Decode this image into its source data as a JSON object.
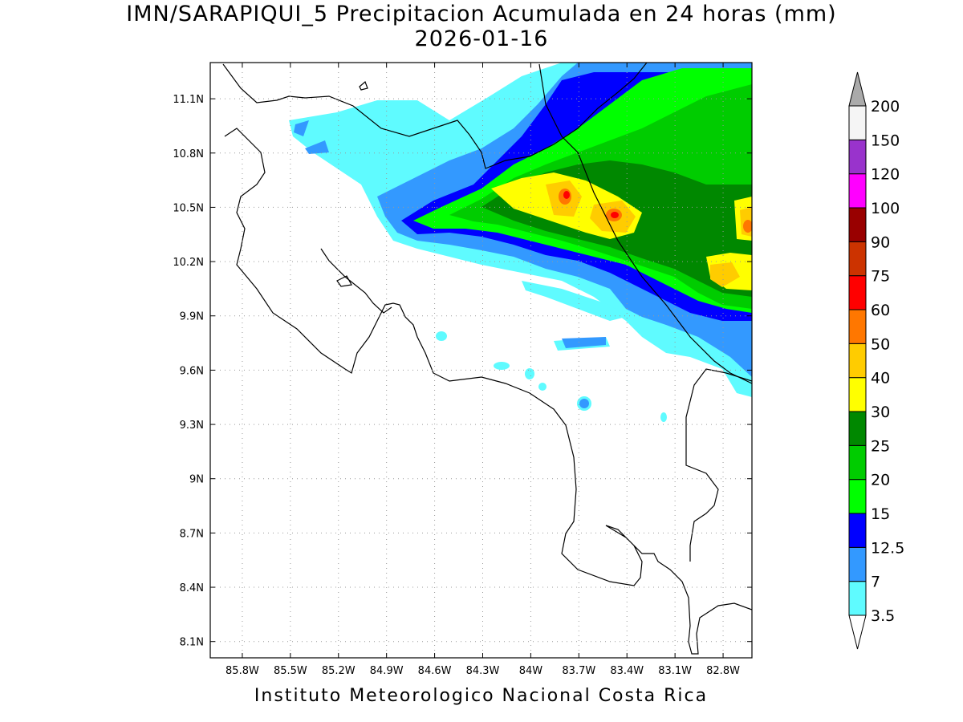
{
  "title_line1": "IMN/SARAPIQUI_5 Precipitacion Acumulada en 24 horas (mm)",
  "title_line2": "2026-01-16",
  "footer": "Instituto Meteorologico Nacional Costa Rica",
  "map": {
    "lon_range": [
      -86.0,
      -82.62
    ],
    "lat_range": [
      8.01,
      11.3
    ],
    "lat_ticks": [
      "11.1N",
      "10.8N",
      "10.5N",
      "10.2N",
      "9.9N",
      "9.6N",
      "9.3N",
      "9N",
      "8.7N",
      "8.4N",
      "8.1N"
    ],
    "lat_values": [
      11.1,
      10.8,
      10.5,
      10.2,
      9.9,
      9.6,
      9.3,
      9.0,
      8.7,
      8.4,
      8.1
    ],
    "lon_ticks": [
      "85.8W",
      "85.5W",
      "85.2W",
      "84.9W",
      "84.6W",
      "84.3W",
      "84W",
      "83.7W",
      "83.4W",
      "83.1W",
      "82.8W"
    ],
    "lon_values": [
      -85.8,
      -85.5,
      -85.2,
      -84.9,
      -84.6,
      -84.3,
      -84.0,
      -83.7,
      -83.4,
      -83.1,
      -82.8
    ],
    "grid": true
  },
  "colorbar": {
    "levels": [
      "3.5",
      "7",
      "12.5",
      "15",
      "20",
      "25",
      "30",
      "40",
      "50",
      "60",
      "75",
      "90",
      "100",
      "120",
      "150",
      "200"
    ],
    "colors": [
      "#5ffbff",
      "#3399ff",
      "#0000ff",
      "#00ff00",
      "#00cc00",
      "#008800",
      "#ffff00",
      "#ffcc00",
      "#ff7700",
      "#ff0000",
      "#cc3300",
      "#990000",
      "#ff00ff",
      "#9933cc",
      "#f5f5f5"
    ],
    "top_arrow_color": "#aaaaaa",
    "bottom_arrow_color": "#ffffff"
  }
}
